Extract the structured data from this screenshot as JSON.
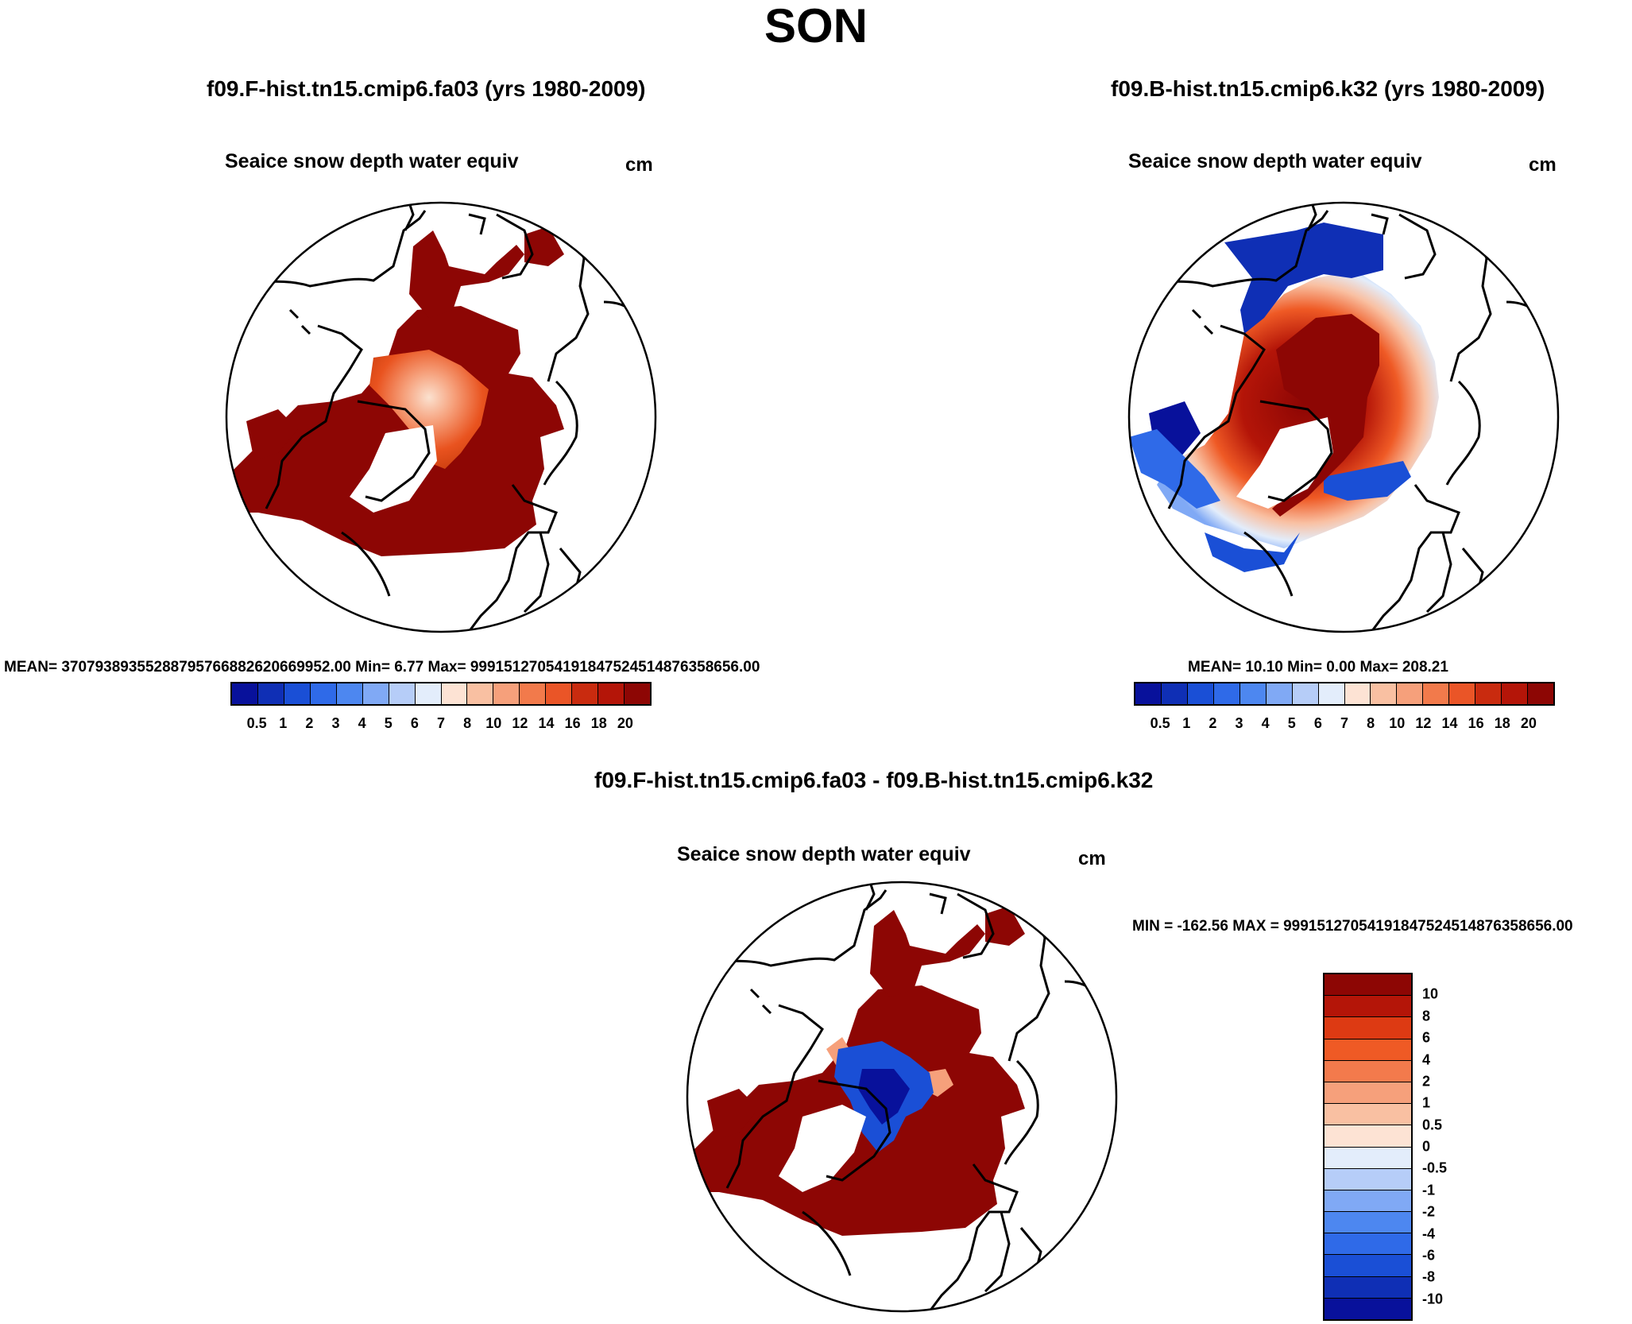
{
  "title": "SON",
  "panels": [
    {
      "case_title": "f09.F-hist.tn15.cmip6.fa03 (yrs 1980-2009)",
      "variable": "Seaice snow depth water equiv",
      "units": "cm",
      "stats": "MEAN= 37079389355288795766882620669952.00  Min=   6.77  Max= 99915127054191847524514876358656.00"
    },
    {
      "case_title": "f09.B-hist.tn15.cmip6.k32 (yrs 1980-2009)",
      "variable": "Seaice snow depth water equiv",
      "units": "cm",
      "stats": "MEAN=  10.10  Min=   0.00  Max= 208.21"
    }
  ],
  "diff_panel": {
    "case_title": "f09.F-hist.tn15.cmip6.fa03 - f09.B-hist.tn15.cmip6.k32",
    "variable": "Seaice snow depth water equiv",
    "units": "cm",
    "stats": "MIN = -162.56 MAX = 99915127054191847524514876358656.00"
  },
  "colorbar_levels": [
    "0.5",
    "1",
    "2",
    "3",
    "4",
    "5",
    "6",
    "7",
    "8",
    "10",
    "12",
    "14",
    "16",
    "18",
    "20"
  ],
  "colorbar_colors": [
    "#08119b",
    "#0f2fb5",
    "#1a4fd6",
    "#2f6ae8",
    "#4d87f0",
    "#80a9f5",
    "#b6cdf8",
    "#e3edfb",
    "#fde3d4",
    "#f9c0a2",
    "#f6a07b",
    "#f27a4b",
    "#ea5527",
    "#c92b0f",
    "#b41508",
    "#8d0604"
  ],
  "diff_levels": [
    "10",
    "8",
    "6",
    "4",
    "2",
    "1",
    "0.5",
    "0",
    "-0.5",
    "-1",
    "-2",
    "-4",
    "-6",
    "-8",
    "-10"
  ],
  "diff_colors": [
    "#8d0604",
    "#b41508",
    "#dd3a13",
    "#ef5a25",
    "#f37a4c",
    "#f6a07b",
    "#f9c0a2",
    "#fde3d4",
    "#e3edfb",
    "#b6cdf8",
    "#80a9f5",
    "#4d87f0",
    "#2f6ae8",
    "#1a4fd6",
    "#0f2fb5",
    "#08119b"
  ]
}
